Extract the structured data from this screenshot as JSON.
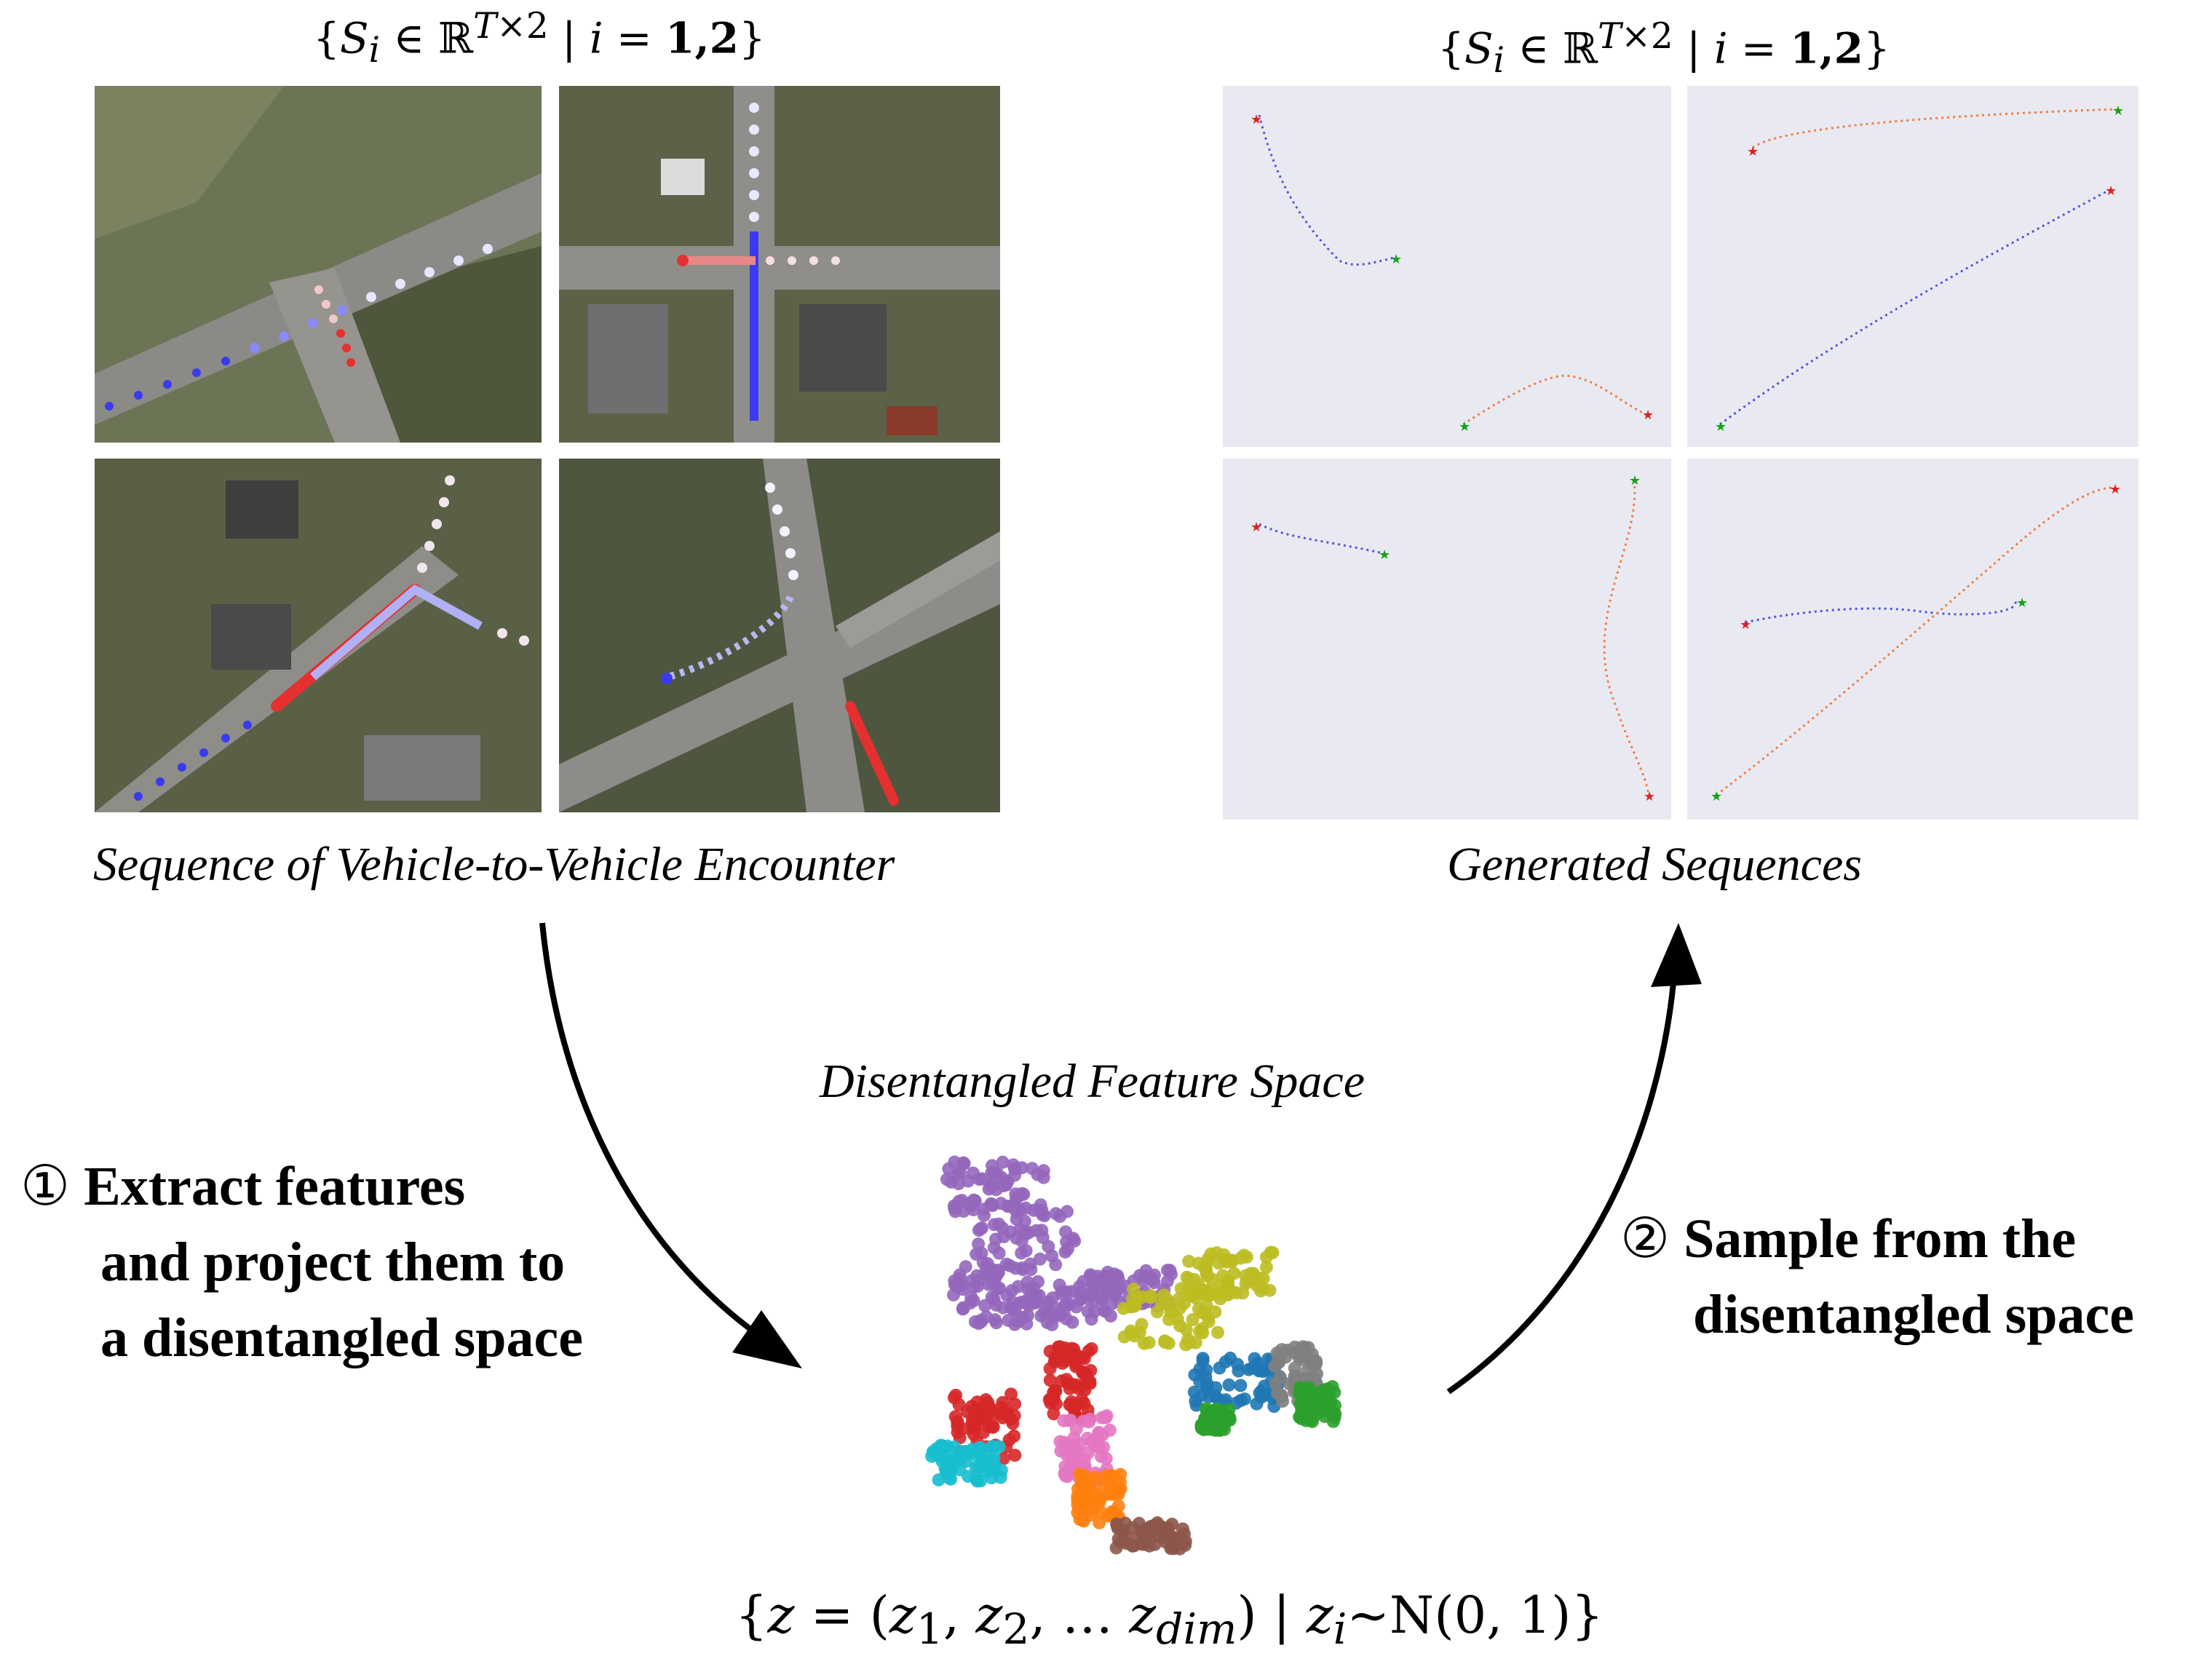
{
  "left_set_label": "{S_i ∈ ℝ^{T×2} | i = 1,2}",
  "right_set_label": "{S_i ∈ ℝ^{T×2} | i = 1,2}",
  "left_caption": "Sequence of Vehicle-to-Vehicle Encounter",
  "right_caption": "Generated Sequences",
  "feature_space_title": "Disentangled Feature Space",
  "latent_label": "{z = (z_1, z_2, … z_dim) | z_i ~ N(0, 1)}",
  "step1": {
    "marker": "①",
    "lines": [
      "Extract features",
      "and project them to",
      "a disentangled space"
    ]
  },
  "step2": {
    "marker": "②",
    "lines": [
      "Sample from the",
      "disentangled space"
    ]
  },
  "colors": {
    "vehicle1": "#3a3af0",
    "vehicle2": "#e53030",
    "gen_blue": "#5555e0",
    "gen_orange": "#f07f45",
    "plot_bg": "#e9e9f2",
    "start_marker": "#1aa01a",
    "end_marker": "#e02020"
  },
  "cluster_colors": [
    "#9467bd",
    "#bcbd22",
    "#1f77b4",
    "#7f7f7f",
    "#2ca02c",
    "#d62728",
    "#e377c2",
    "#17becf",
    "#ff7f0e",
    "#8c564b"
  ]
}
